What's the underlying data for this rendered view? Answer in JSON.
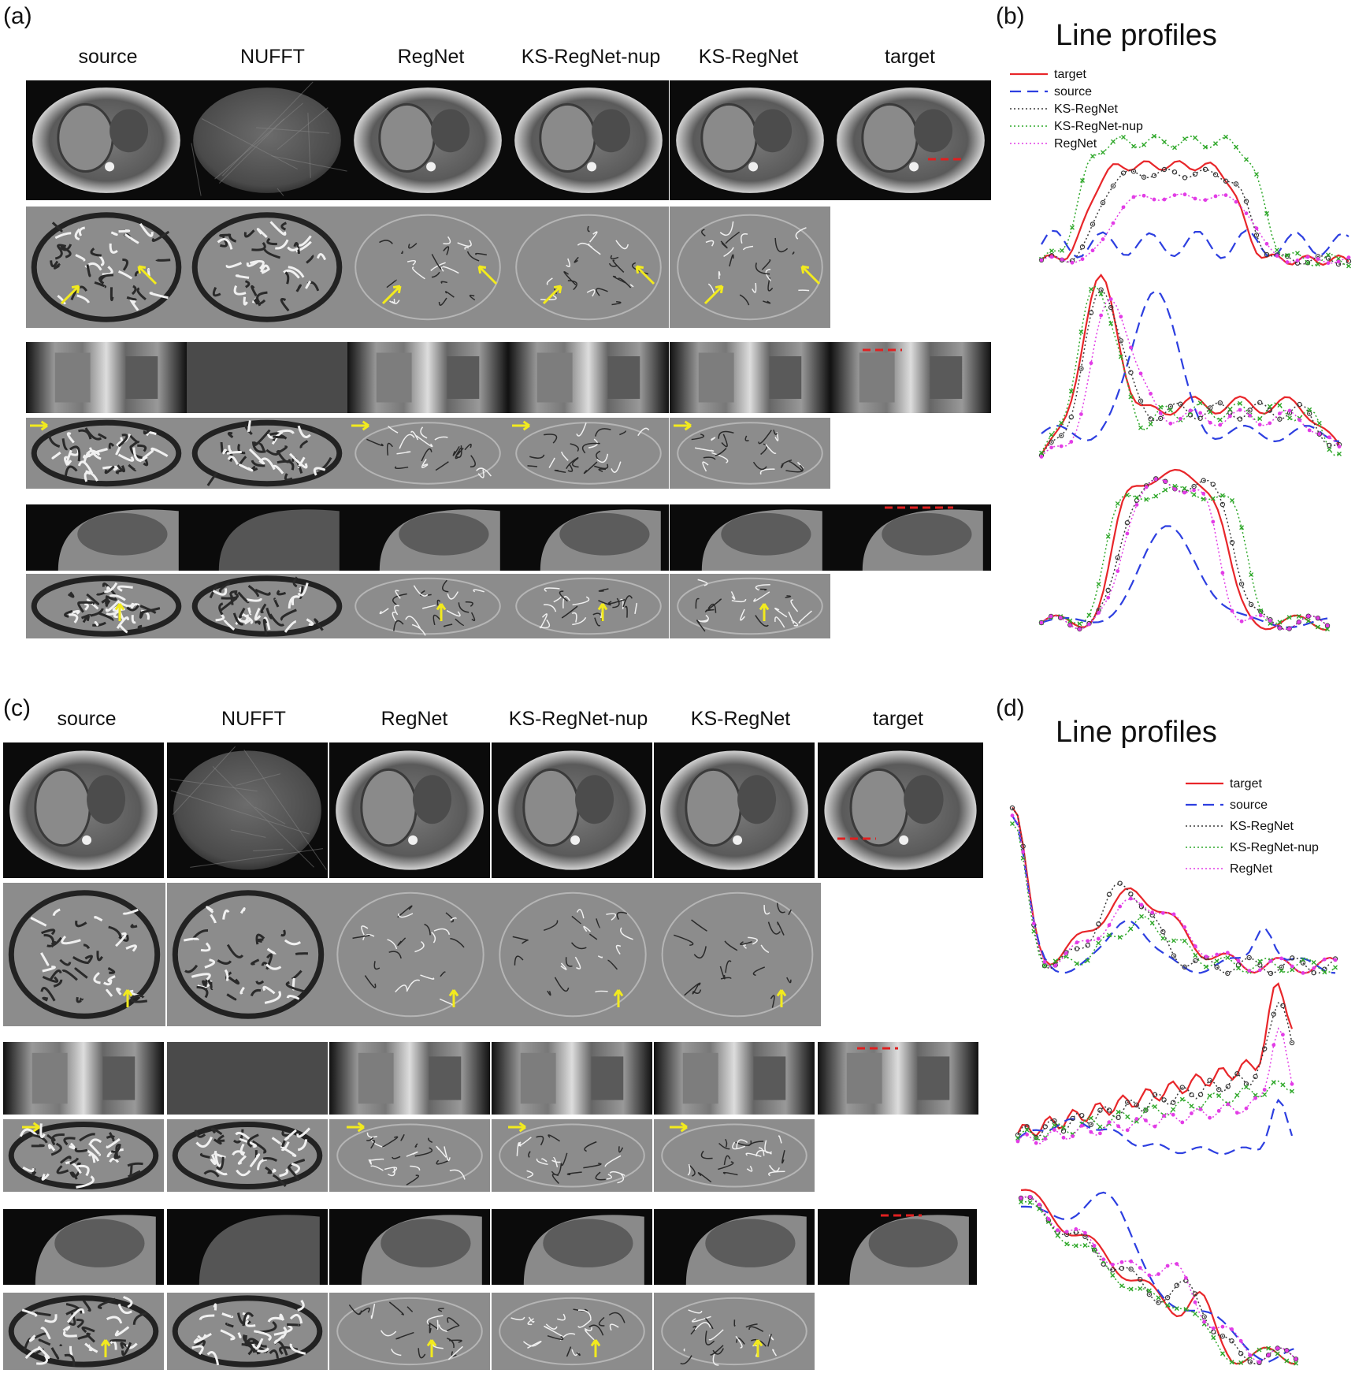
{
  "panels": {
    "a": "(a)",
    "b": "(b)",
    "c": "(c)",
    "d": "(d)"
  },
  "columns": [
    "source",
    "NUFFT",
    "RegNet",
    "KS-RegNet-nup",
    "KS-RegNet",
    "target"
  ],
  "profiles_title": "Line profiles",
  "legend": [
    "target",
    "source",
    "KS-RegNet",
    "KS-RegNet-nup",
    "RegNet"
  ],
  "colors": {
    "target": "#e8262a",
    "source": "#2d3fe0",
    "KS-RegNet": "#3a3a3a",
    "KS-RegNet-nup": "#2fa82a",
    "RegNet": "#e23ce6",
    "arrow": "#f2ea1e",
    "marker": "#e02020"
  },
  "figure_icons": [
    "axial-mri",
    "difference-map",
    "coronal-mri",
    "sagittal-mri",
    "yellow-arrow",
    "red-line-marker"
  ]
}
